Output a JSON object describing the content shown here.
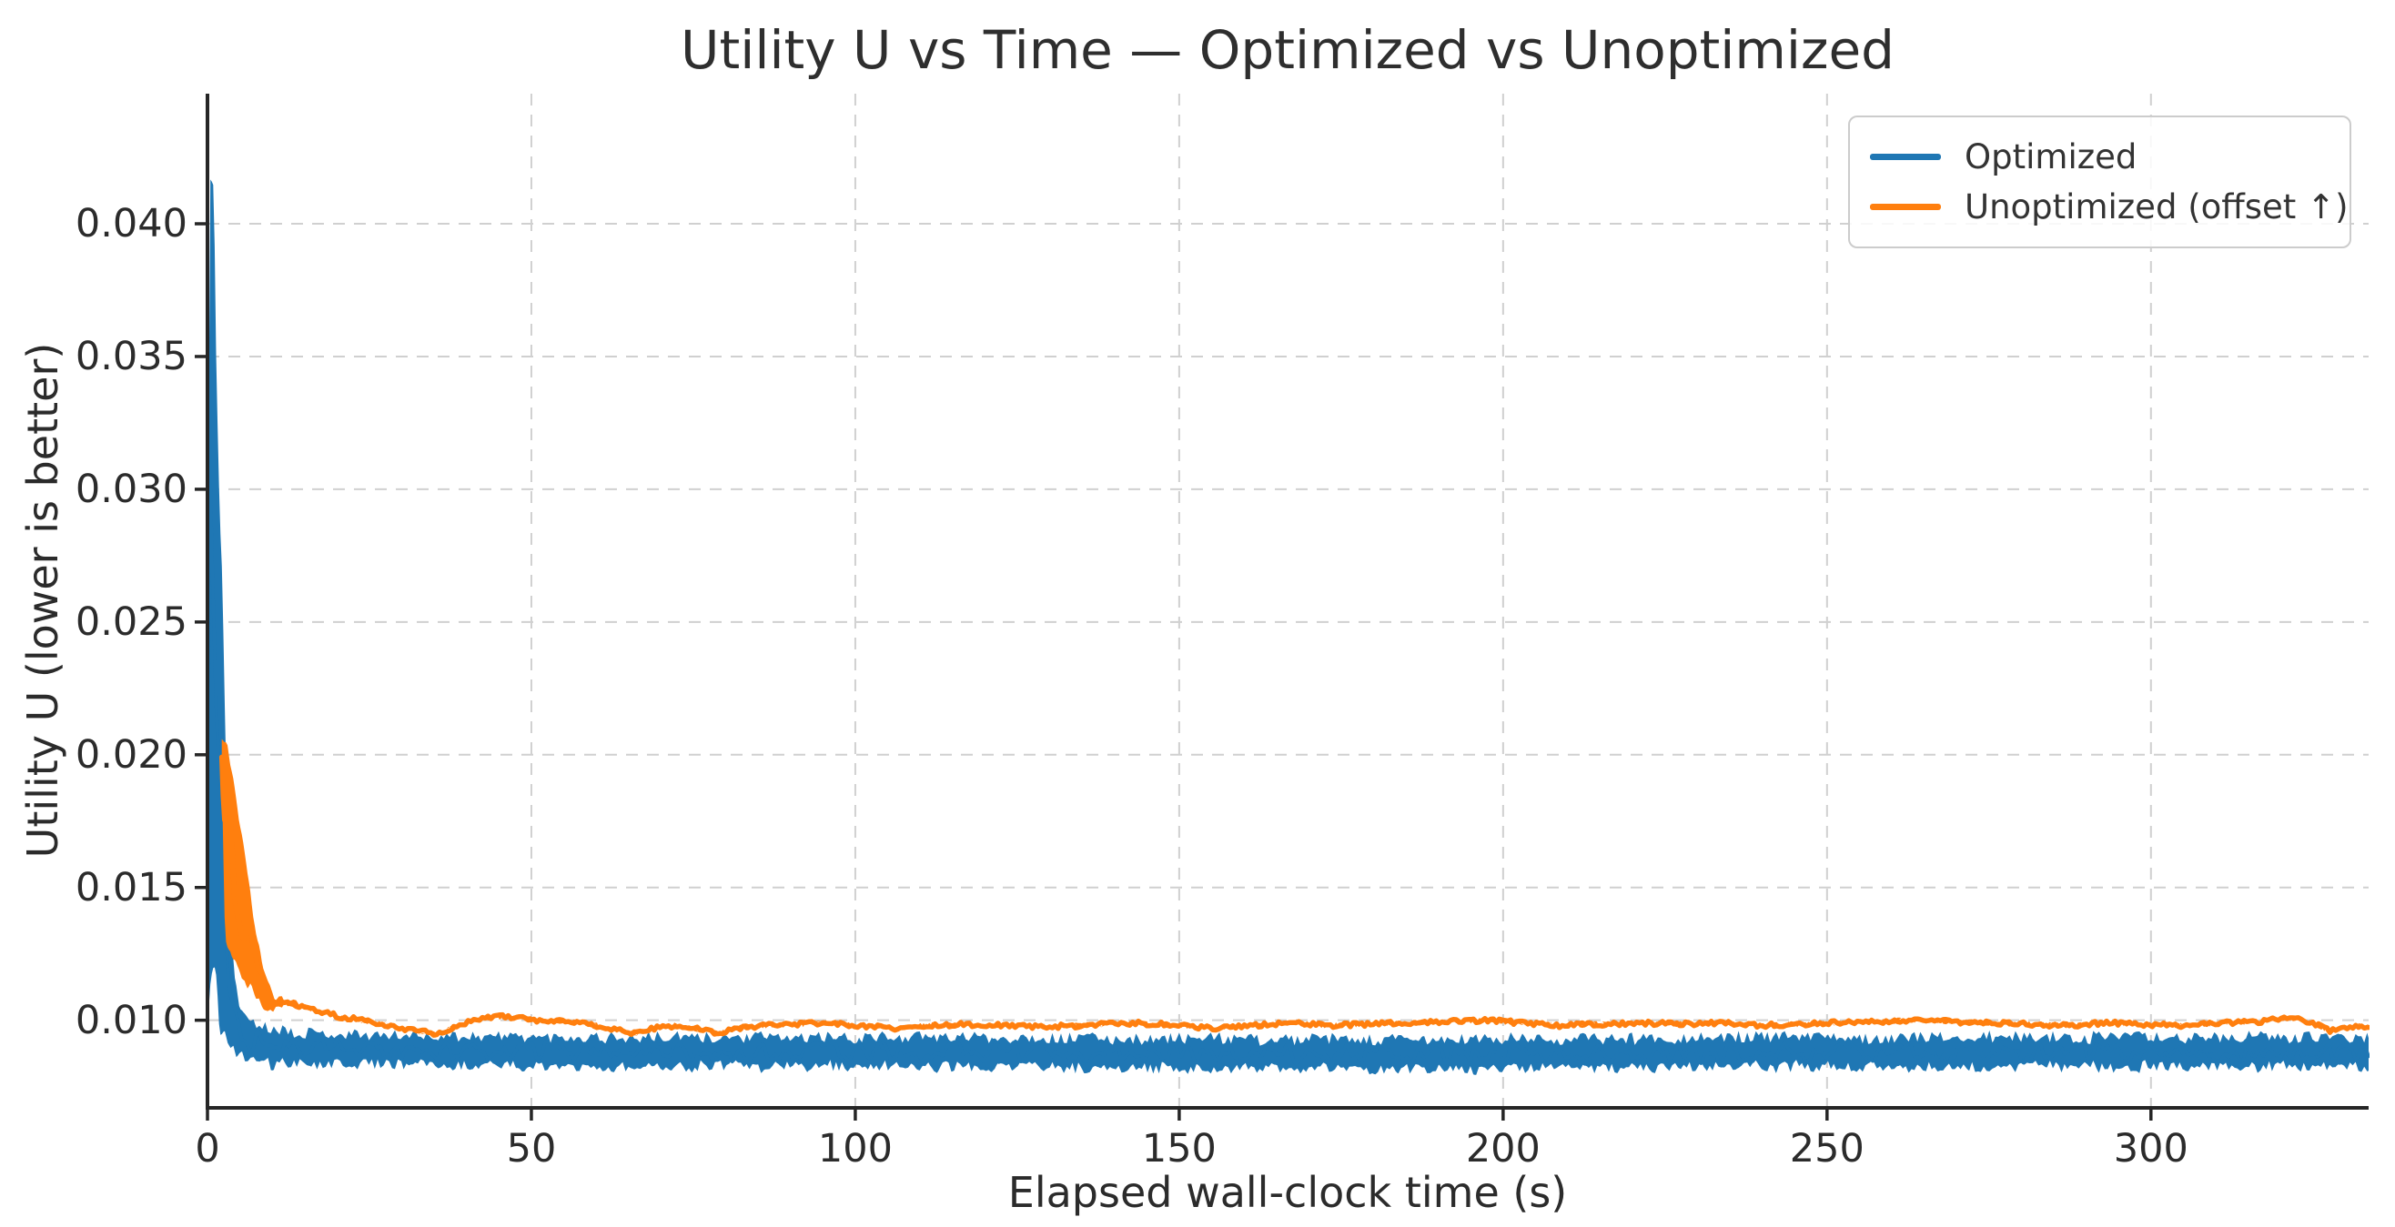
{
  "chart_data": {
    "type": "line",
    "title": "Utility U vs Time — Optimized vs Unoptimized",
    "xlabel": "Elapsed wall-clock time (s)",
    "ylabel": "Utility U (lower is better)",
    "xlim": [
      0,
      333.6
    ],
    "ylim": [
      0.0067,
      0.0449
    ],
    "xticks": [
      0,
      50,
      100,
      150,
      200,
      250,
      300
    ],
    "xtick_labels": [
      "0",
      "50",
      "100",
      "150",
      "200",
      "250",
      "300"
    ],
    "yticks": [
      0.01,
      0.015,
      0.02,
      0.025,
      0.03,
      0.035,
      0.04
    ],
    "ytick_labels": [
      "0.010",
      "0.015",
      "0.020",
      "0.025",
      "0.030",
      "0.035",
      "0.040"
    ],
    "grid": {
      "on": true,
      "style": "dashed",
      "color": "#d0d0d0"
    },
    "axis_color": "#262626",
    "legend": {
      "position": "upper right",
      "entries": [
        "Optimized",
        "Unoptimized (offset ↑)"
      ]
    },
    "series": [
      {
        "name": "Optimized",
        "color": "#1f77b4",
        "linewidth": 3.5,
        "seed": 11,
        "edge_jitter": 0.00022,
        "description": "Noisy trace: spikes to ~0.043 in first second, decays by ~5 s, then flat noisy band ~0.0083–0.0094 (center ~0.0088) to end of run.",
        "envelope": [
          [
            0.0,
            0.0094,
            0.01
          ],
          [
            0.3,
            0.0095,
            0.0433
          ],
          [
            1.0,
            0.0097,
            0.043
          ],
          [
            1.3,
            0.0096,
            0.0368
          ],
          [
            1.6,
            0.0095,
            0.033
          ],
          [
            1.9,
            0.0094,
            0.0297
          ],
          [
            2.3,
            0.0094,
            0.0278
          ],
          [
            2.7,
            0.0093,
            0.0225
          ],
          [
            3.1,
            0.0092,
            0.0175
          ],
          [
            3.6,
            0.009,
            0.0135
          ],
          [
            4.2,
            0.0088,
            0.0115
          ],
          [
            5.0,
            0.0086,
            0.0106
          ],
          [
            6.5,
            0.0084,
            0.0101
          ],
          [
            9.0,
            0.0083,
            0.0098
          ],
          [
            14.0,
            0.0083,
            0.0096
          ],
          [
            25.0,
            0.0083,
            0.0095
          ],
          [
            60.0,
            0.0082,
            0.0094
          ],
          [
            120.0,
            0.0082,
            0.0094
          ],
          [
            180.0,
            0.0081,
            0.0093
          ],
          [
            240.0,
            0.0082,
            0.0094
          ],
          [
            300.0,
            0.0082,
            0.0094
          ],
          [
            333.6,
            0.0082,
            0.0094
          ]
        ]
      },
      {
        "name": "Unoptimized (offset ↑)",
        "color": "#ff7f0e",
        "linewidth": 5.5,
        "seed": 23,
        "edge_jitter": 0.00012,
        "description": "Starts ~0.0207 near t=2 s, noisy decay until ~12 s, then smooth line: bump ~0.0102 near t=44 s, dips ~0.0095 near t=35/66/79 s, hovers ~0.0098–0.0100 to end.",
        "envelope": [
          [
            2.2,
            0.0192,
            0.0207
          ],
          [
            2.7,
            0.0131,
            0.0206
          ],
          [
            3.2,
            0.0126,
            0.0204
          ],
          [
            3.8,
            0.0122,
            0.0196
          ],
          [
            4.4,
            0.0119,
            0.0186
          ],
          [
            5.2,
            0.0116,
            0.0172
          ],
          [
            6.0,
            0.0113,
            0.0161
          ],
          [
            6.8,
            0.0111,
            0.0147
          ],
          [
            7.6,
            0.0108,
            0.0133
          ],
          [
            8.6,
            0.0104,
            0.0121
          ],
          [
            10.0,
            0.0104,
            0.0109
          ],
          [
            12.0,
            0.0106,
            0.0108
          ],
          [
            15.0,
            0.0105,
            0.0105
          ],
          [
            18.0,
            0.0103,
            0.0103
          ],
          [
            21.0,
            0.0101,
            0.0101
          ],
          [
            24.0,
            0.01,
            0.01
          ],
          [
            28.0,
            0.0098,
            0.0098
          ],
          [
            32.0,
            0.0096,
            0.0096
          ],
          [
            35.0,
            0.0095,
            0.0095
          ],
          [
            38.0,
            0.0097,
            0.0097
          ],
          [
            41.0,
            0.01,
            0.01
          ],
          [
            44.0,
            0.0101,
            0.0101
          ],
          [
            46.0,
            0.01015,
            0.01015
          ],
          [
            48.0,
            0.0101,
            0.0101
          ],
          [
            51.0,
            0.01,
            0.01
          ],
          [
            54.0,
            0.00995,
            0.00995
          ],
          [
            58.0,
            0.0099,
            0.0099
          ],
          [
            62.0,
            0.0097,
            0.0097
          ],
          [
            66.0,
            0.0095,
            0.0095
          ],
          [
            69.0,
            0.0097,
            0.0097
          ],
          [
            72.0,
            0.0098,
            0.0098
          ],
          [
            75.0,
            0.0097,
            0.0097
          ],
          [
            79.0,
            0.0095,
            0.0095
          ],
          [
            82.0,
            0.0097,
            0.0097
          ],
          [
            86.0,
            0.0098,
            0.0098
          ],
          [
            91.0,
            0.00985,
            0.00985
          ],
          [
            96.0,
            0.0099,
            0.0099
          ],
          [
            101.0,
            0.0098,
            0.0098
          ],
          [
            106.0,
            0.0097,
            0.0097
          ],
          [
            111.0,
            0.0098,
            0.0098
          ],
          [
            117.0,
            0.00985,
            0.00985
          ],
          [
            123.0,
            0.0098,
            0.0098
          ],
          [
            129.0,
            0.00975,
            0.00975
          ],
          [
            135.0,
            0.0098,
            0.0098
          ],
          [
            141.0,
            0.0099,
            0.0099
          ],
          [
            148.0,
            0.00985,
            0.00985
          ],
          [
            155.0,
            0.0097,
            0.0097
          ],
          [
            161.0,
            0.0098,
            0.0098
          ],
          [
            167.0,
            0.0099,
            0.0099
          ],
          [
            173.0,
            0.0098,
            0.0098
          ],
          [
            179.0,
            0.00985,
            0.00985
          ],
          [
            185.0,
            0.0099,
            0.0099
          ],
          [
            191.0,
            0.00995,
            0.00995
          ],
          [
            197.0,
            0.01,
            0.01
          ],
          [
            203.0,
            0.0099,
            0.0099
          ],
          [
            209.0,
            0.0098,
            0.0098
          ],
          [
            215.0,
            0.00985,
            0.00985
          ],
          [
            221.0,
            0.0099,
            0.0099
          ],
          [
            227.0,
            0.00985,
            0.00985
          ],
          [
            233.0,
            0.0099,
            0.0099
          ],
          [
            239.0,
            0.0098,
            0.0098
          ],
          [
            245.0,
            0.00985,
            0.00985
          ],
          [
            251.0,
            0.0099,
            0.0099
          ],
          [
            257.0,
            0.00995,
            0.00995
          ],
          [
            263.0,
            0.01,
            0.01
          ],
          [
            269.0,
            0.00995,
            0.00995
          ],
          [
            275.0,
            0.0099,
            0.0099
          ],
          [
            281.0,
            0.00985,
            0.00985
          ],
          [
            287.0,
            0.0098,
            0.0098
          ],
          [
            293.0,
            0.0099,
            0.0099
          ],
          [
            299.0,
            0.00985,
            0.00985
          ],
          [
            305.0,
            0.0098,
            0.0098
          ],
          [
            311.0,
            0.0099,
            0.0099
          ],
          [
            317.0,
            0.00995,
            0.00995
          ],
          [
            321.5,
            0.0101,
            0.0101
          ],
          [
            325.0,
            0.0099,
            0.0099
          ],
          [
            327.5,
            0.0096,
            0.0096
          ],
          [
            330.0,
            0.0097,
            0.0097
          ],
          [
            332.0,
            0.0098,
            0.0098
          ],
          [
            333.6,
            0.00975,
            0.00975
          ]
        ]
      }
    ]
  }
}
